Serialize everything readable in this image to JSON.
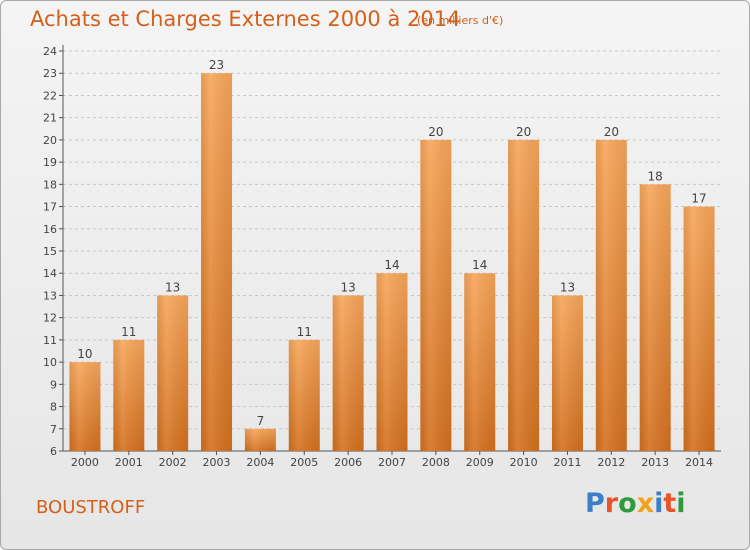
{
  "title": "Achats et Charges Externes 2000 à 2014",
  "unit": "(en milliers d'€)",
  "commune": "BOUSTROFF",
  "brand": {
    "text": "Proxiti",
    "letter_colors": [
      "#3a7fc8",
      "#e8542a",
      "#2f9a3c",
      "#f0a41c",
      "#3a7fc8",
      "#e8542a",
      "#2f9a3c"
    ]
  },
  "colors": {
    "bar_top": "#f7a65a",
    "bar_bottom": "#d4701f",
    "text_accent": "#d4601a",
    "grid": "#c8c8c8"
  },
  "chart_data": {
    "type": "bar",
    "categories": [
      "2000",
      "2001",
      "2002",
      "2003",
      "2004",
      "2005",
      "2006",
      "2007",
      "2008",
      "2009",
      "2010",
      "2011",
      "2012",
      "2013",
      "2014"
    ],
    "values": [
      10,
      11,
      13,
      23,
      7,
      11,
      13,
      14,
      20,
      14,
      20,
      13,
      20,
      18,
      17
    ],
    "ylim": [
      6,
      24
    ],
    "yticks": [
      6,
      7,
      8,
      9,
      10,
      11,
      12,
      13,
      14,
      15,
      16,
      17,
      18,
      19,
      20,
      21,
      22,
      23,
      24
    ],
    "grid": true,
    "data_labels": true
  }
}
